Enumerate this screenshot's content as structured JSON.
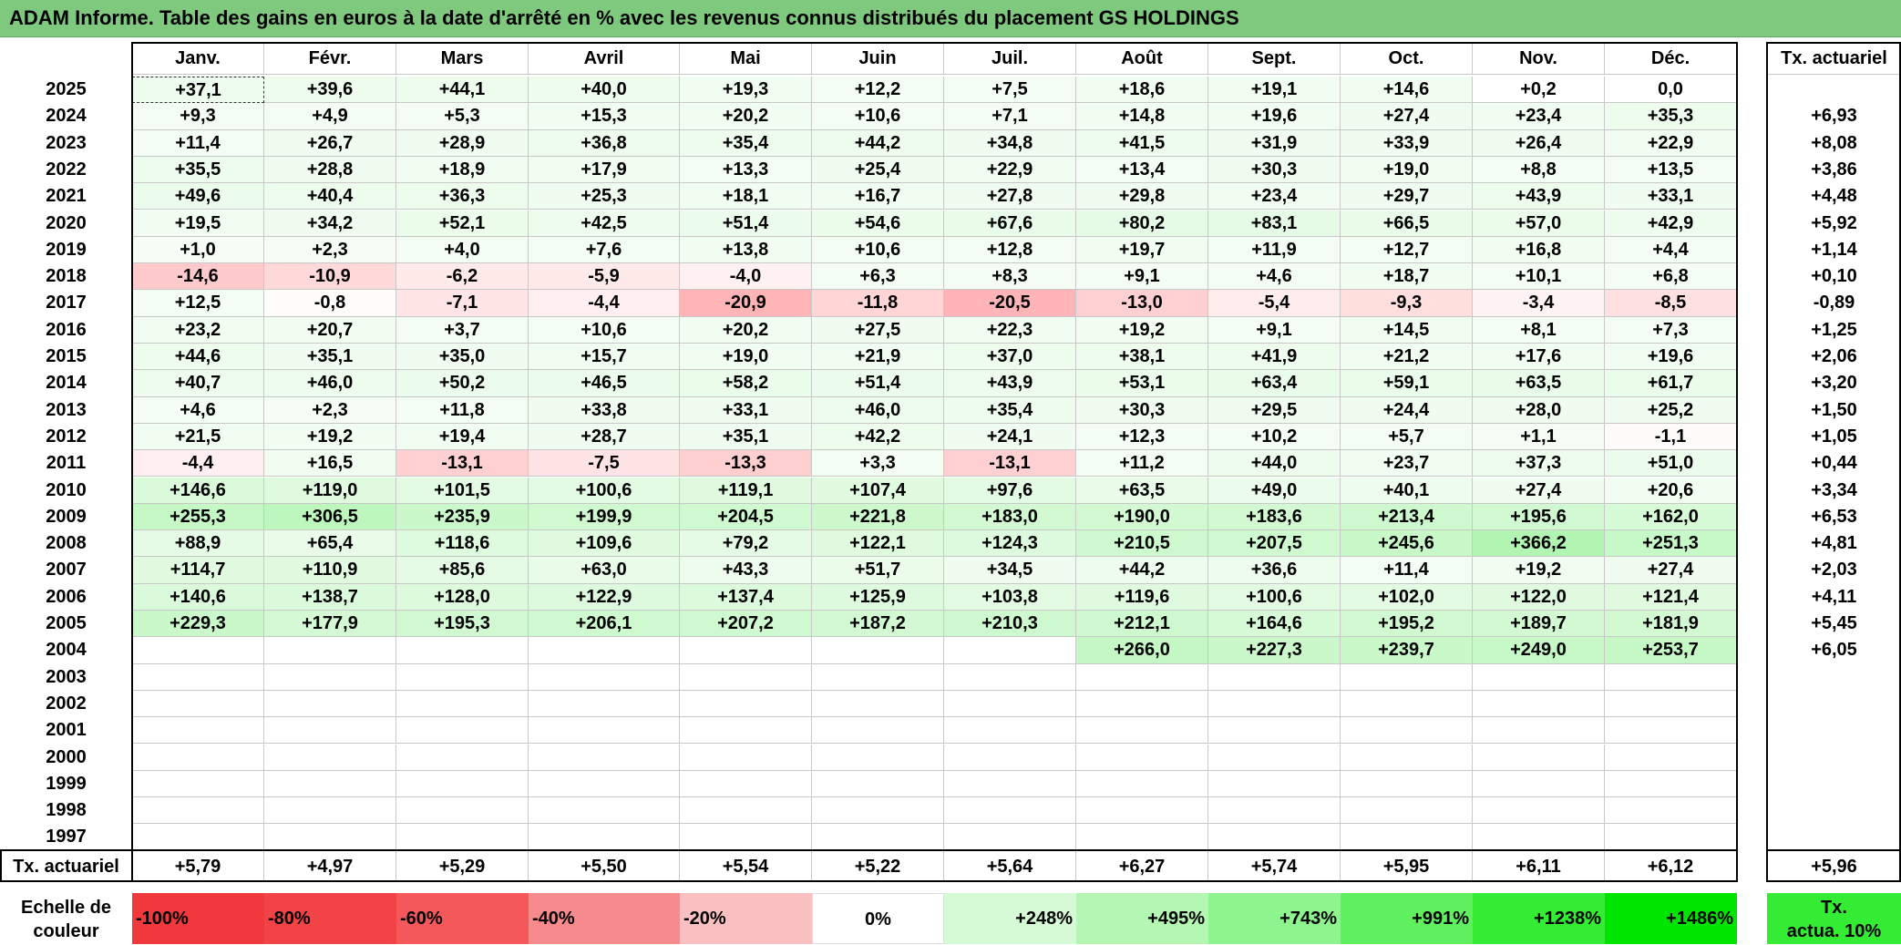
{
  "title": "ADAM Informe. Table des gains en euros à la date d'arrêté en % avec les revenus connus distribués du placement GS HOLDINGS",
  "months": [
    "Janv.",
    "Févr.",
    "Mars",
    "Avril",
    "Mai",
    "Juin",
    "Juil.",
    "Août",
    "Sept.",
    "Oct.",
    "Nov.",
    "Déc."
  ],
  "tx_header": "Tx. actuariel",
  "rows": [
    {
      "year": "2025",
      "values": [
        "+37,1",
        "+39,6",
        "+44,1",
        "+40,0",
        "+19,3",
        "+12,2",
        "+7,5",
        "+18,6",
        "+19,1",
        "+14,6",
        "+0,2",
        "0,0"
      ],
      "tx": ""
    },
    {
      "year": "2024",
      "values": [
        "+9,3",
        "+4,9",
        "+5,3",
        "+15,3",
        "+20,2",
        "+10,6",
        "+7,1",
        "+14,8",
        "+19,6",
        "+27,4",
        "+23,4",
        "+35,3"
      ],
      "tx": "+6,93"
    },
    {
      "year": "2023",
      "values": [
        "+11,4",
        "+26,7",
        "+28,9",
        "+36,8",
        "+35,4",
        "+44,2",
        "+34,8",
        "+41,5",
        "+31,9",
        "+33,9",
        "+26,4",
        "+22,9"
      ],
      "tx": "+8,08"
    },
    {
      "year": "2022",
      "values": [
        "+35,5",
        "+28,8",
        "+18,9",
        "+17,9",
        "+13,3",
        "+25,4",
        "+22,9",
        "+13,4",
        "+30,3",
        "+19,0",
        "+8,8",
        "+13,5"
      ],
      "tx": "+3,86"
    },
    {
      "year": "2021",
      "values": [
        "+49,6",
        "+40,4",
        "+36,3",
        "+25,3",
        "+18,1",
        "+16,7",
        "+27,8",
        "+29,8",
        "+23,4",
        "+29,7",
        "+43,9",
        "+33,1"
      ],
      "tx": "+4,48"
    },
    {
      "year": "2020",
      "values": [
        "+19,5",
        "+34,2",
        "+52,1",
        "+42,5",
        "+51,4",
        "+54,6",
        "+67,6",
        "+80,2",
        "+83,1",
        "+66,5",
        "+57,0",
        "+42,9"
      ],
      "tx": "+5,92"
    },
    {
      "year": "2019",
      "values": [
        "+1,0",
        "+2,3",
        "+4,0",
        "+7,6",
        "+13,8",
        "+10,6",
        "+12,8",
        "+19,7",
        "+11,9",
        "+12,7",
        "+16,8",
        "+4,4"
      ],
      "tx": "+1,14"
    },
    {
      "year": "2018",
      "values": [
        "-14,6",
        "-10,9",
        "-6,2",
        "-5,9",
        "-4,0",
        "+6,3",
        "+8,3",
        "+9,1",
        "+4,6",
        "+18,7",
        "+10,1",
        "+6,8"
      ],
      "tx": "+0,10"
    },
    {
      "year": "2017",
      "values": [
        "+12,5",
        "-0,8",
        "-7,1",
        "-4,4",
        "-20,9",
        "-11,8",
        "-20,5",
        "-13,0",
        "-5,4",
        "-9,3",
        "-3,4",
        "-8,5"
      ],
      "tx": "-0,89"
    },
    {
      "year": "2016",
      "values": [
        "+23,2",
        "+20,7",
        "+3,7",
        "+10,6",
        "+20,2",
        "+27,5",
        "+22,3",
        "+19,2",
        "+9,1",
        "+14,5",
        "+8,1",
        "+7,3"
      ],
      "tx": "+1,25"
    },
    {
      "year": "2015",
      "values": [
        "+44,6",
        "+35,1",
        "+35,0",
        "+15,7",
        "+19,0",
        "+21,9",
        "+37,0",
        "+38,1",
        "+41,9",
        "+21,2",
        "+17,6",
        "+19,6"
      ],
      "tx": "+2,06"
    },
    {
      "year": "2014",
      "values": [
        "+40,7",
        "+46,0",
        "+50,2",
        "+46,5",
        "+58,2",
        "+51,4",
        "+43,9",
        "+53,1",
        "+63,4",
        "+59,1",
        "+63,5",
        "+61,7"
      ],
      "tx": "+3,20"
    },
    {
      "year": "2013",
      "values": [
        "+4,6",
        "+2,3",
        "+11,8",
        "+33,8",
        "+33,1",
        "+46,0",
        "+35,4",
        "+30,3",
        "+29,5",
        "+24,4",
        "+28,0",
        "+25,2"
      ],
      "tx": "+1,50"
    },
    {
      "year": "2012",
      "values": [
        "+21,5",
        "+19,2",
        "+19,4",
        "+28,7",
        "+35,1",
        "+42,2",
        "+24,1",
        "+12,3",
        "+10,2",
        "+5,7",
        "+1,1",
        "-1,1"
      ],
      "tx": "+1,05"
    },
    {
      "year": "2011",
      "values": [
        "-4,4",
        "+16,5",
        "-13,1",
        "-7,5",
        "-13,3",
        "+3,3",
        "-13,1",
        "+11,2",
        "+44,0",
        "+23,7",
        "+37,3",
        "+51,0"
      ],
      "tx": "+0,44"
    },
    {
      "year": "2010",
      "values": [
        "+146,6",
        "+119,0",
        "+101,5",
        "+100,6",
        "+119,1",
        "+107,4",
        "+97,6",
        "+63,5",
        "+49,0",
        "+40,1",
        "+27,4",
        "+20,6"
      ],
      "tx": "+3,34"
    },
    {
      "year": "2009",
      "values": [
        "+255,3",
        "+306,5",
        "+235,9",
        "+199,9",
        "+204,5",
        "+221,8",
        "+183,0",
        "+190,0",
        "+183,6",
        "+213,4",
        "+195,6",
        "+162,0"
      ],
      "tx": "+6,53"
    },
    {
      "year": "2008",
      "values": [
        "+88,9",
        "+65,4",
        "+118,6",
        "+109,6",
        "+79,2",
        "+122,1",
        "+124,3",
        "+210,5",
        "+207,5",
        "+245,6",
        "+366,2",
        "+251,3"
      ],
      "tx": "+4,81"
    },
    {
      "year": "2007",
      "values": [
        "+114,7",
        "+110,9",
        "+85,6",
        "+63,0",
        "+43,3",
        "+51,7",
        "+34,5",
        "+44,2",
        "+36,6",
        "+11,4",
        "+19,2",
        "+27,4"
      ],
      "tx": "+2,03"
    },
    {
      "year": "2006",
      "values": [
        "+140,6",
        "+138,7",
        "+128,0",
        "+122,9",
        "+137,4",
        "+125,9",
        "+103,8",
        "+119,6",
        "+100,6",
        "+102,0",
        "+122,0",
        "+121,4"
      ],
      "tx": "+4,11"
    },
    {
      "year": "2005",
      "values": [
        "+229,3",
        "+177,9",
        "+195,3",
        "+206,1",
        "+207,2",
        "+187,2",
        "+210,3",
        "+212,1",
        "+164,6",
        "+195,2",
        "+189,7",
        "+181,9"
      ],
      "tx": "+5,45"
    },
    {
      "year": "2004",
      "values": [
        "",
        "",
        "",
        "",
        "",
        "",
        "",
        "+266,0",
        "+227,3",
        "+239,7",
        "+249,0",
        "+253,7"
      ],
      "tx": "+6,05"
    },
    {
      "year": "2003",
      "values": [
        "",
        "",
        "",
        "",
        "",
        "",
        "",
        "",
        "",
        "",
        "",
        ""
      ],
      "tx": ""
    },
    {
      "year": "2002",
      "values": [
        "",
        "",
        "",
        "",
        "",
        "",
        "",
        "",
        "",
        "",
        "",
        ""
      ],
      "tx": ""
    },
    {
      "year": "2001",
      "values": [
        "",
        "",
        "",
        "",
        "",
        "",
        "",
        "",
        "",
        "",
        "",
        ""
      ],
      "tx": ""
    },
    {
      "year": "2000",
      "values": [
        "",
        "",
        "",
        "",
        "",
        "",
        "",
        "",
        "",
        "",
        "",
        ""
      ],
      "tx": ""
    },
    {
      "year": "1999",
      "values": [
        "",
        "",
        "",
        "",
        "",
        "",
        "",
        "",
        "",
        "",
        "",
        ""
      ],
      "tx": ""
    },
    {
      "year": "1998",
      "values": [
        "",
        "",
        "",
        "",
        "",
        "",
        "",
        "",
        "",
        "",
        "",
        ""
      ],
      "tx": ""
    },
    {
      "year": "1997",
      "values": [
        "",
        "",
        "",
        "",
        "",
        "",
        "",
        "",
        "",
        "",
        "",
        ""
      ],
      "tx": ""
    }
  ],
  "footer": {
    "label": "Tx. actuariel",
    "values": [
      "+5,79",
      "+4,97",
      "+5,29",
      "+5,50",
      "+5,54",
      "+5,22",
      "+5,64",
      "+6,27",
      "+5,74",
      "+5,95",
      "+6,11",
      "+6,12"
    ],
    "total": "+5,96"
  },
  "scale": {
    "label_line1": "Echelle de",
    "label_line2": "couleur",
    "items": [
      {
        "text": "-100%",
        "color": "#f0393c",
        "align": "left"
      },
      {
        "text": "-80%",
        "color": "#f24447",
        "align": "left"
      },
      {
        "text": "-60%",
        "color": "#f5585a",
        "align": "left"
      },
      {
        "text": "-40%",
        "color": "#f78a8c",
        "align": "left"
      },
      {
        "text": "-20%",
        "color": "#fabfc0",
        "align": "left"
      },
      {
        "text": "0%",
        "color": "#ffffff",
        "align": "center"
      },
      {
        "text": "+248%",
        "color": "#d6fad6",
        "align": "right"
      },
      {
        "text": "+495%",
        "color": "#b3f7b3",
        "align": "right"
      },
      {
        "text": "+743%",
        "color": "#8ef48e",
        "align": "right"
      },
      {
        "text": "+991%",
        "color": "#5fef5f",
        "align": "right"
      },
      {
        "text": "+1238%",
        "color": "#33ec33",
        "align": "right"
      },
      {
        "text": "+1486%",
        "color": "#00e500",
        "align": "right"
      }
    ],
    "tx_line1": "Tx.",
    "tx_line2": "actua. 10%",
    "tx_color": "#33ec33"
  }
}
